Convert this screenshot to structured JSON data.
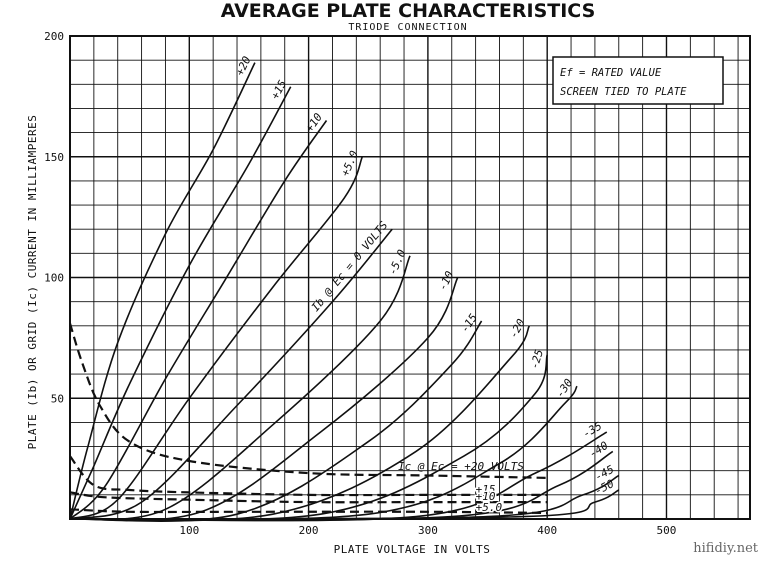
{
  "chart_data": {
    "type": "line",
    "title": "AVERAGE PLATE CHARACTERISTICS",
    "subtitle": "TRIODE CONNECTION",
    "xlabel": "PLATE VOLTAGE IN VOLTS",
    "ylabel": "PLATE (Ib) OR GRID (Ic) CURRENT IN MILLIAMPERES",
    "xlim": [
      0,
      570
    ],
    "ylim": [
      0,
      200
    ],
    "x_ticks": [
      {
        "value": 100,
        "label": "100"
      },
      {
        "value": 200,
        "label": "200"
      },
      {
        "value": 300,
        "label": "300"
      },
      {
        "value": 400,
        "label": "400"
      },
      {
        "value": 500,
        "label": "500"
      }
    ],
    "y_ticks": [
      {
        "value": 50,
        "label": "50"
      },
      {
        "value": 100,
        "label": "100"
      },
      {
        "value": 150,
        "label": "150"
      },
      {
        "value": 200,
        "label": "200"
      }
    ],
    "grid": true,
    "note_lines": [
      "Ef = RATED VALUE",
      "SCREEN TIED TO PLATE"
    ],
    "plate_current_series": [
      {
        "label": "+20",
        "points": [
          [
            0,
            0
          ],
          [
            15,
            30
          ],
          [
            40,
            73
          ],
          [
            80,
            118
          ],
          [
            120,
            153
          ],
          [
            155,
            189
          ]
        ]
      },
      {
        "label": "+15",
        "points": [
          [
            0,
            0
          ],
          [
            20,
            22
          ],
          [
            50,
            56
          ],
          [
            100,
            105
          ],
          [
            150,
            147
          ],
          [
            185,
            179
          ]
        ]
      },
      {
        "label": "+10",
        "points": [
          [
            0,
            0
          ],
          [
            30,
            14
          ],
          [
            80,
            58
          ],
          [
            130,
            99
          ],
          [
            180,
            140
          ],
          [
            215,
            165
          ]
        ]
      },
      {
        "label": "+5.0",
        "points": [
          [
            0,
            0
          ],
          [
            40,
            8
          ],
          [
            100,
            50
          ],
          [
            170,
            96
          ],
          [
            230,
            133
          ],
          [
            245,
            150
          ]
        ]
      },
      {
        "label": "Ib @ Ec = 0 VOLTS",
        "points": [
          [
            0,
            0
          ],
          [
            60,
            7
          ],
          [
            140,
            47
          ],
          [
            220,
            90
          ],
          [
            270,
            120
          ]
        ]
      },
      {
        "label": "-5.0",
        "points": [
          [
            0,
            0
          ],
          [
            80,
            4
          ],
          [
            170,
            39
          ],
          [
            260,
            82
          ],
          [
            285,
            109
          ]
        ]
      },
      {
        "label": "-10",
        "points": [
          [
            0,
            0
          ],
          [
            110,
            3
          ],
          [
            210,
            36
          ],
          [
            300,
            75
          ],
          [
            325,
            100
          ]
        ]
      },
      {
        "label": "-15",
        "points": [
          [
            0,
            0
          ],
          [
            140,
            2
          ],
          [
            250,
            32
          ],
          [
            320,
            64
          ],
          [
            345,
            82
          ]
        ]
      },
      {
        "label": "-20",
        "points": [
          [
            0,
            0
          ],
          [
            170,
            2
          ],
          [
            290,
            28
          ],
          [
            370,
            67
          ],
          [
            385,
            80
          ]
        ]
      },
      {
        "label": "-25",
        "points": [
          [
            0,
            0
          ],
          [
            210,
            2
          ],
          [
            330,
            26
          ],
          [
            390,
            52
          ],
          [
            400,
            68
          ]
        ]
      },
      {
        "label": "-30",
        "points": [
          [
            0,
            0
          ],
          [
            250,
            2
          ],
          [
            360,
            23
          ],
          [
            415,
            48
          ],
          [
            425,
            55
          ]
        ]
      },
      {
        "label": "-35",
        "points": [
          [
            0,
            0
          ],
          [
            290,
            1
          ],
          [
            390,
            19
          ],
          [
            450,
            36
          ]
        ]
      },
      {
        "label": "-40",
        "points": [
          [
            0,
            0
          ],
          [
            320,
            1
          ],
          [
            410,
            14
          ],
          [
            455,
            28
          ]
        ]
      },
      {
        "label": "-45",
        "points": [
          [
            0,
            0
          ],
          [
            350,
            1
          ],
          [
            430,
            10
          ],
          [
            460,
            18
          ]
        ]
      },
      {
        "label": "-50",
        "points": [
          [
            0,
            0
          ],
          [
            380,
            1
          ],
          [
            440,
            7
          ],
          [
            460,
            12
          ]
        ]
      }
    ],
    "grid_current_series": [
      {
        "label": "Ic @ Ec = +20 VOLTS",
        "points": [
          [
            0,
            81
          ],
          [
            10,
            65
          ],
          [
            25,
            47
          ],
          [
            50,
            32
          ],
          [
            100,
            24
          ],
          [
            200,
            19
          ],
          [
            300,
            18
          ],
          [
            400,
            17
          ]
        ]
      },
      {
        "label": "+15",
        "points": [
          [
            0,
            26
          ],
          [
            20,
            14
          ],
          [
            50,
            12
          ],
          [
            100,
            11
          ],
          [
            200,
            10
          ],
          [
            300,
            10
          ],
          [
            400,
            10
          ]
        ]
      },
      {
        "label": "+10",
        "points": [
          [
            0,
            11
          ],
          [
            30,
            9
          ],
          [
            100,
            8
          ],
          [
            200,
            7
          ],
          [
            300,
            7
          ],
          [
            400,
            7
          ]
        ]
      },
      {
        "label": "+5.0",
        "points": [
          [
            0,
            4
          ],
          [
            50,
            3
          ],
          [
            150,
            3
          ],
          [
            300,
            3
          ],
          [
            400,
            2.5
          ]
        ]
      }
    ]
  },
  "watermark": "hifidiy.net"
}
